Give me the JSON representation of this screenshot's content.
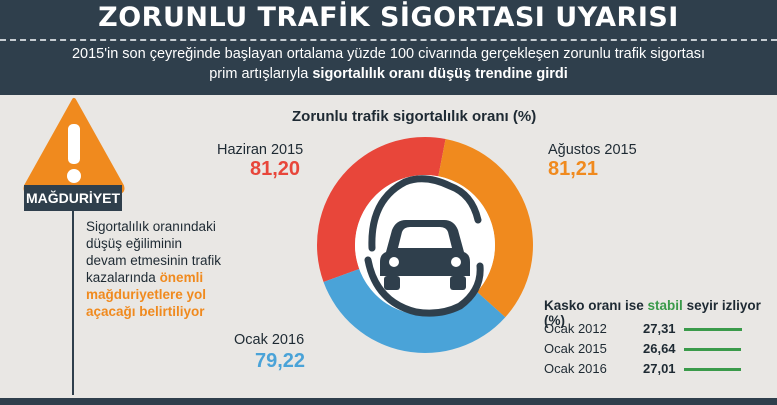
{
  "header": {
    "title": "ZORUNLU TRAFİK SİGORTASI UYARISI",
    "subtitle_line1": "2015'in son çeyreğinde başlayan ortalama yüzde 100 civarında gerçekleşen zorunlu trafik sigortası",
    "subtitle_line2_plain": "prim artışlarıyla ",
    "subtitle_line2_bold": "sigortalılık oranı düşüş trendine girdi"
  },
  "warning": {
    "badge": "MAĞDURİYET",
    "text_plain": "Sigortalılık oranındaki düşüş eğiliminin devam etmesinin trafik kazalarında",
    "text_highlight": "önemli mağduriyetlere yol açacağı belirtiliyor"
  },
  "chart_data": [
    {
      "type": "pie",
      "title": "Zorunlu trafik sigortalılık oranı (%)",
      "categories": [
        "Haziran 2015",
        "Ağustos 2015",
        "Ocak 2016"
      ],
      "value_labels": [
        "81,20",
        "81,21",
        "79,22"
      ],
      "values": [
        81.2,
        81.21,
        79.22
      ],
      "colors": [
        "#e8463a",
        "#f08a1e",
        "#4aa3d8"
      ]
    },
    {
      "type": "bar",
      "title_plain": "Kasko oranı ise ",
      "title_green": "stabil",
      "title_rest": " seyir izliyor (%)",
      "categories": [
        "Ocak 2012",
        "Ocak 2015",
        "Ocak 2016"
      ],
      "value_labels": [
        "27,31",
        "26,64",
        "27,01"
      ],
      "values": [
        27.31,
        26.64,
        27.01
      ],
      "color": "#3a9a4a"
    }
  ]
}
